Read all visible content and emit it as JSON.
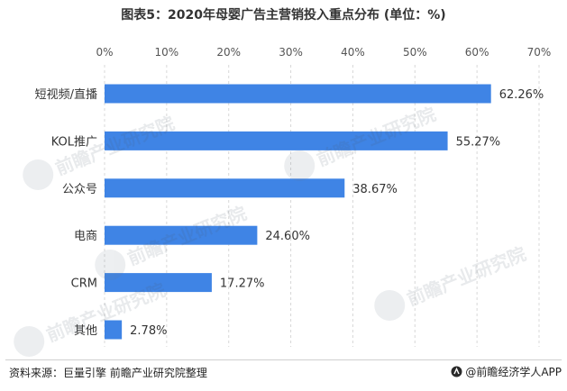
{
  "title": "图表5：2020年母婴广告主营销投入重点分布 (单位：%)",
  "source": "资料来源：巨量引擎 前瞻产业研究院整理",
  "brand": "@前瞻经济学人APP",
  "watermark_text": "前瞻产业研究院",
  "colors": {
    "bar": "#3f84e5",
    "grid": "#d8d8d8",
    "text": "#333333"
  },
  "chart_data": {
    "type": "bar",
    "orientation": "horizontal",
    "categories": [
      "短视频/直播",
      "KOL推广",
      "公众号",
      "电商",
      "CRM",
      "其他"
    ],
    "values": [
      62.26,
      55.27,
      38.67,
      24.6,
      17.27,
      2.78
    ],
    "value_labels": [
      "62.26%",
      "55.27%",
      "38.67%",
      "24.60%",
      "17.27%",
      "2.78%"
    ],
    "xlim": [
      0,
      70
    ],
    "xticks": [
      "0%",
      "10%",
      "20%",
      "30%",
      "40%",
      "50%",
      "60%",
      "70%"
    ],
    "xaxis_position": "top",
    "grid": true,
    "title": "图表5：2020年母婴广告主营销投入重点分布 (单位：%)"
  }
}
